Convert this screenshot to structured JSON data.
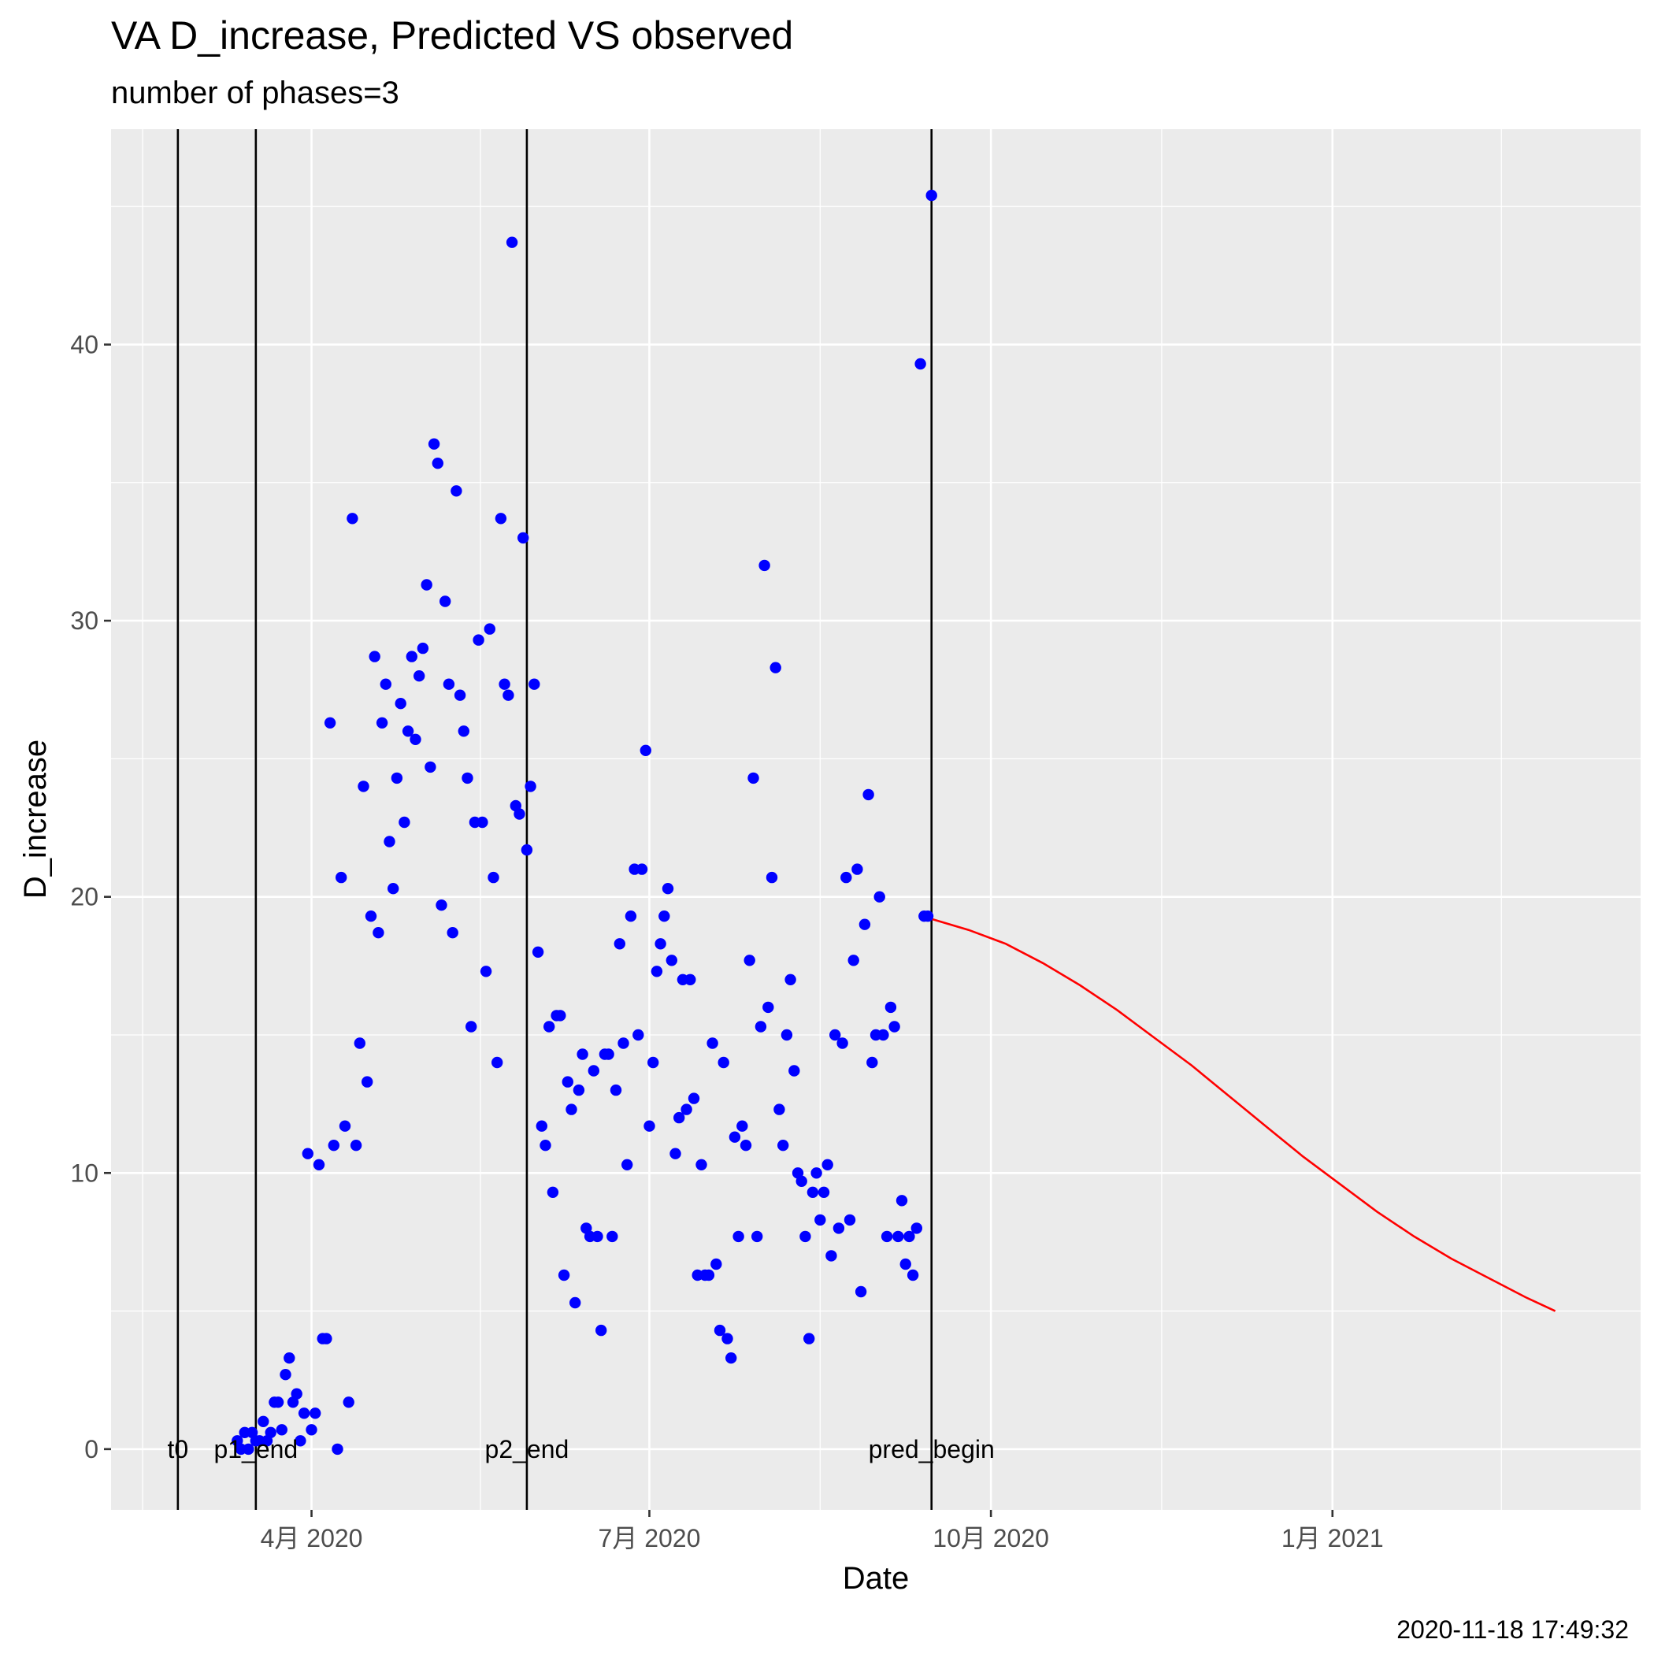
{
  "chart_data": {
    "type": "scatter",
    "title": "VA D_increase, Predicted VS observed",
    "subtitle": "number of phases=3",
    "xlabel": "Date",
    "ylabel": "D_increase",
    "caption": "2020-11-18 17:49:32",
    "xlim": [
      "2020-02-07",
      "2021-03-25"
    ],
    "ylim": [
      -2.2,
      47.8
    ],
    "x_ticks": [
      {
        "date": "2020-04-01",
        "label": "4月 2020"
      },
      {
        "date": "2020-07-01",
        "label": "7月 2020"
      },
      {
        "date": "2020-10-01",
        "label": "10月 2020"
      },
      {
        "date": "2021-01-01",
        "label": "1月 2021"
      }
    ],
    "y_ticks": [
      0,
      10,
      20,
      30,
      40
    ],
    "grid": true,
    "colors": {
      "observed": "#0000ff",
      "predicted": "#ff0000",
      "vline": "#000000",
      "panel_bg": "#ebebeb",
      "gridline": "#ffffff"
    },
    "vlines": [
      {
        "date": "2020-02-25",
        "label": "t0"
      },
      {
        "date": "2020-03-17",
        "label": "p1_end"
      },
      {
        "date": "2020-05-29",
        "label": "p2_end"
      },
      {
        "date": "2020-09-15",
        "label": "pred_begin"
      }
    ],
    "series": [
      {
        "kind": "points",
        "points": [
          [
            "2020-03-12",
            0.3
          ],
          [
            "2020-03-13",
            0
          ],
          [
            "2020-03-14",
            0.6
          ],
          [
            "2020-03-15",
            0
          ],
          [
            "2020-03-16",
            0.6
          ],
          [
            "2020-03-17",
            0.3
          ],
          [
            "2020-03-18",
            0.3
          ],
          [
            "2020-03-19",
            1
          ],
          [
            "2020-03-20",
            0.3
          ],
          [
            "2020-03-21",
            0.6
          ],
          [
            "2020-03-22",
            1.7
          ],
          [
            "2020-03-23",
            1.7
          ],
          [
            "2020-03-24",
            0.7
          ],
          [
            "2020-03-25",
            2.7
          ],
          [
            "2020-03-26",
            3.3
          ],
          [
            "2020-03-27",
            1.7
          ],
          [
            "2020-03-28",
            2
          ],
          [
            "2020-03-29",
            0.3
          ],
          [
            "2020-03-30",
            1.3
          ],
          [
            "2020-03-31",
            10.7
          ],
          [
            "2020-04-01",
            0.7
          ],
          [
            "2020-04-02",
            1.3
          ],
          [
            "2020-04-03",
            10.3
          ],
          [
            "2020-04-04",
            4
          ],
          [
            "2020-04-05",
            4
          ],
          [
            "2020-04-06",
            26.3
          ],
          [
            "2020-04-07",
            11
          ],
          [
            "2020-04-08",
            0
          ],
          [
            "2020-04-09",
            20.7
          ],
          [
            "2020-04-10",
            11.7
          ],
          [
            "2020-04-11",
            1.7
          ],
          [
            "2020-04-12",
            33.7
          ],
          [
            "2020-04-13",
            11
          ],
          [
            "2020-04-14",
            14.7
          ],
          [
            "2020-04-15",
            24
          ],
          [
            "2020-04-16",
            13.3
          ],
          [
            "2020-04-17",
            19.3
          ],
          [
            "2020-04-18",
            28.7
          ],
          [
            "2020-04-19",
            18.7
          ],
          [
            "2020-04-20",
            26.3
          ],
          [
            "2020-04-21",
            27.7
          ],
          [
            "2020-04-22",
            22
          ],
          [
            "2020-04-23",
            20.3
          ],
          [
            "2020-04-24",
            24.3
          ],
          [
            "2020-04-25",
            27
          ],
          [
            "2020-04-26",
            22.7
          ],
          [
            "2020-04-27",
            26
          ],
          [
            "2020-04-28",
            28.7
          ],
          [
            "2020-04-29",
            25.7
          ],
          [
            "2020-04-30",
            28
          ],
          [
            "2020-05-01",
            29
          ],
          [
            "2020-05-02",
            31.3
          ],
          [
            "2020-05-03",
            24.7
          ],
          [
            "2020-05-04",
            36.4
          ],
          [
            "2020-05-05",
            35.7
          ],
          [
            "2020-05-06",
            19.7
          ],
          [
            "2020-05-07",
            30.7
          ],
          [
            "2020-05-08",
            27.7
          ],
          [
            "2020-05-09",
            18.7
          ],
          [
            "2020-05-10",
            34.7
          ],
          [
            "2020-05-11",
            27.3
          ],
          [
            "2020-05-12",
            26
          ],
          [
            "2020-05-13",
            24.3
          ],
          [
            "2020-05-14",
            15.3
          ],
          [
            "2020-05-15",
            22.7
          ],
          [
            "2020-05-16",
            29.3
          ],
          [
            "2020-05-17",
            22.7
          ],
          [
            "2020-05-18",
            17.3
          ],
          [
            "2020-05-19",
            29.7
          ],
          [
            "2020-05-20",
            20.7
          ],
          [
            "2020-05-21",
            14
          ],
          [
            "2020-05-22",
            33.7
          ],
          [
            "2020-05-23",
            27.7
          ],
          [
            "2020-05-24",
            27.3
          ],
          [
            "2020-05-25",
            43.7
          ],
          [
            "2020-05-26",
            23.3
          ],
          [
            "2020-05-27",
            23
          ],
          [
            "2020-05-28",
            33
          ],
          [
            "2020-05-29",
            21.7
          ],
          [
            "2020-05-30",
            24
          ],
          [
            "2020-05-31",
            27.7
          ],
          [
            "2020-06-01",
            18
          ],
          [
            "2020-06-02",
            11.7
          ],
          [
            "2020-06-03",
            11
          ],
          [
            "2020-06-04",
            15.3
          ],
          [
            "2020-06-05",
            9.3
          ],
          [
            "2020-06-06",
            15.7
          ],
          [
            "2020-06-07",
            15.7
          ],
          [
            "2020-06-08",
            6.3
          ],
          [
            "2020-06-09",
            13.3
          ],
          [
            "2020-06-10",
            12.3
          ],
          [
            "2020-06-11",
            5.3
          ],
          [
            "2020-06-12",
            13
          ],
          [
            "2020-06-13",
            14.3
          ],
          [
            "2020-06-14",
            8
          ],
          [
            "2020-06-15",
            7.7
          ],
          [
            "2020-06-16",
            13.7
          ],
          [
            "2020-06-17",
            7.7
          ],
          [
            "2020-06-18",
            4.3
          ],
          [
            "2020-06-19",
            14.3
          ],
          [
            "2020-06-20",
            14.3
          ],
          [
            "2020-06-21",
            7.7
          ],
          [
            "2020-06-22",
            13
          ],
          [
            "2020-06-23",
            18.3
          ],
          [
            "2020-06-24",
            14.7
          ],
          [
            "2020-06-25",
            10.3
          ],
          [
            "2020-06-26",
            19.3
          ],
          [
            "2020-06-27",
            21
          ],
          [
            "2020-06-28",
            15
          ],
          [
            "2020-06-29",
            21
          ],
          [
            "2020-06-30",
            25.3
          ],
          [
            "2020-07-01",
            11.7
          ],
          [
            "2020-07-02",
            14
          ],
          [
            "2020-07-03",
            17.3
          ],
          [
            "2020-07-04",
            18.3
          ],
          [
            "2020-07-05",
            19.3
          ],
          [
            "2020-07-06",
            20.3
          ],
          [
            "2020-07-07",
            17.7
          ],
          [
            "2020-07-08",
            10.7
          ],
          [
            "2020-07-09",
            12
          ],
          [
            "2020-07-10",
            17
          ],
          [
            "2020-07-11",
            12.3
          ],
          [
            "2020-07-12",
            17
          ],
          [
            "2020-07-13",
            12.7
          ],
          [
            "2020-07-14",
            6.3
          ],
          [
            "2020-07-15",
            10.3
          ],
          [
            "2020-07-16",
            6.3
          ],
          [
            "2020-07-17",
            6.3
          ],
          [
            "2020-07-18",
            14.7
          ],
          [
            "2020-07-19",
            6.7
          ],
          [
            "2020-07-20",
            4.3
          ],
          [
            "2020-07-21",
            14
          ],
          [
            "2020-07-22",
            4
          ],
          [
            "2020-07-23",
            3.3
          ],
          [
            "2020-07-24",
            11.3
          ],
          [
            "2020-07-25",
            7.7
          ],
          [
            "2020-07-26",
            11.7
          ],
          [
            "2020-07-27",
            11
          ],
          [
            "2020-07-28",
            17.7
          ],
          [
            "2020-07-29",
            24.3
          ],
          [
            "2020-07-30",
            7.7
          ],
          [
            "2020-07-31",
            15.3
          ],
          [
            "2020-08-01",
            32
          ],
          [
            "2020-08-02",
            16
          ],
          [
            "2020-08-03",
            20.7
          ],
          [
            "2020-08-04",
            28.3
          ],
          [
            "2020-08-05",
            12.3
          ],
          [
            "2020-08-06",
            11
          ],
          [
            "2020-08-07",
            15
          ],
          [
            "2020-08-08",
            17
          ],
          [
            "2020-08-09",
            13.7
          ],
          [
            "2020-08-10",
            10
          ],
          [
            "2020-08-11",
            9.7
          ],
          [
            "2020-08-12",
            7.7
          ],
          [
            "2020-08-13",
            4
          ],
          [
            "2020-08-14",
            9.3
          ],
          [
            "2020-08-15",
            10
          ],
          [
            "2020-08-16",
            8.3
          ],
          [
            "2020-08-17",
            9.3
          ],
          [
            "2020-08-18",
            10.3
          ],
          [
            "2020-08-19",
            7
          ],
          [
            "2020-08-20",
            15
          ],
          [
            "2020-08-21",
            8
          ],
          [
            "2020-08-22",
            14.7
          ],
          [
            "2020-08-23",
            20.7
          ],
          [
            "2020-08-24",
            8.3
          ],
          [
            "2020-08-25",
            17.7
          ],
          [
            "2020-08-26",
            21
          ],
          [
            "2020-08-27",
            5.7
          ],
          [
            "2020-08-28",
            19
          ],
          [
            "2020-08-29",
            23.7
          ],
          [
            "2020-08-30",
            14
          ],
          [
            "2020-08-31",
            15
          ],
          [
            "2020-09-01",
            20
          ],
          [
            "2020-09-02",
            15
          ],
          [
            "2020-09-03",
            7.7
          ],
          [
            "2020-09-04",
            16
          ],
          [
            "2020-09-05",
            15.3
          ],
          [
            "2020-09-06",
            7.7
          ],
          [
            "2020-09-07",
            9
          ],
          [
            "2020-09-08",
            6.7
          ],
          [
            "2020-09-09",
            7.7
          ],
          [
            "2020-09-10",
            6.3
          ],
          [
            "2020-09-11",
            8
          ],
          [
            "2020-09-12",
            39.3
          ],
          [
            "2020-09-13",
            19.3
          ],
          [
            "2020-09-14",
            19.3
          ],
          [
            "2020-09-15",
            45.4
          ]
        ]
      },
      {
        "kind": "line",
        "points": [
          [
            "2020-09-15",
            19.2
          ],
          [
            "2020-09-25",
            18.8
          ],
          [
            "2020-10-05",
            18.3
          ],
          [
            "2020-10-15",
            17.6
          ],
          [
            "2020-10-25",
            16.8
          ],
          [
            "2020-11-04",
            15.9
          ],
          [
            "2020-11-14",
            14.9
          ],
          [
            "2020-11-24",
            13.9
          ],
          [
            "2020-12-04",
            12.8
          ],
          [
            "2020-12-14",
            11.7
          ],
          [
            "2020-12-24",
            10.6
          ],
          [
            "2021-01-03",
            9.6
          ],
          [
            "2021-01-13",
            8.6
          ],
          [
            "2021-01-23",
            7.7
          ],
          [
            "2021-02-02",
            6.9
          ],
          [
            "2021-02-12",
            6.2
          ],
          [
            "2021-02-22",
            5.5
          ],
          [
            "2021-03-02",
            5.0
          ]
        ]
      }
    ]
  }
}
